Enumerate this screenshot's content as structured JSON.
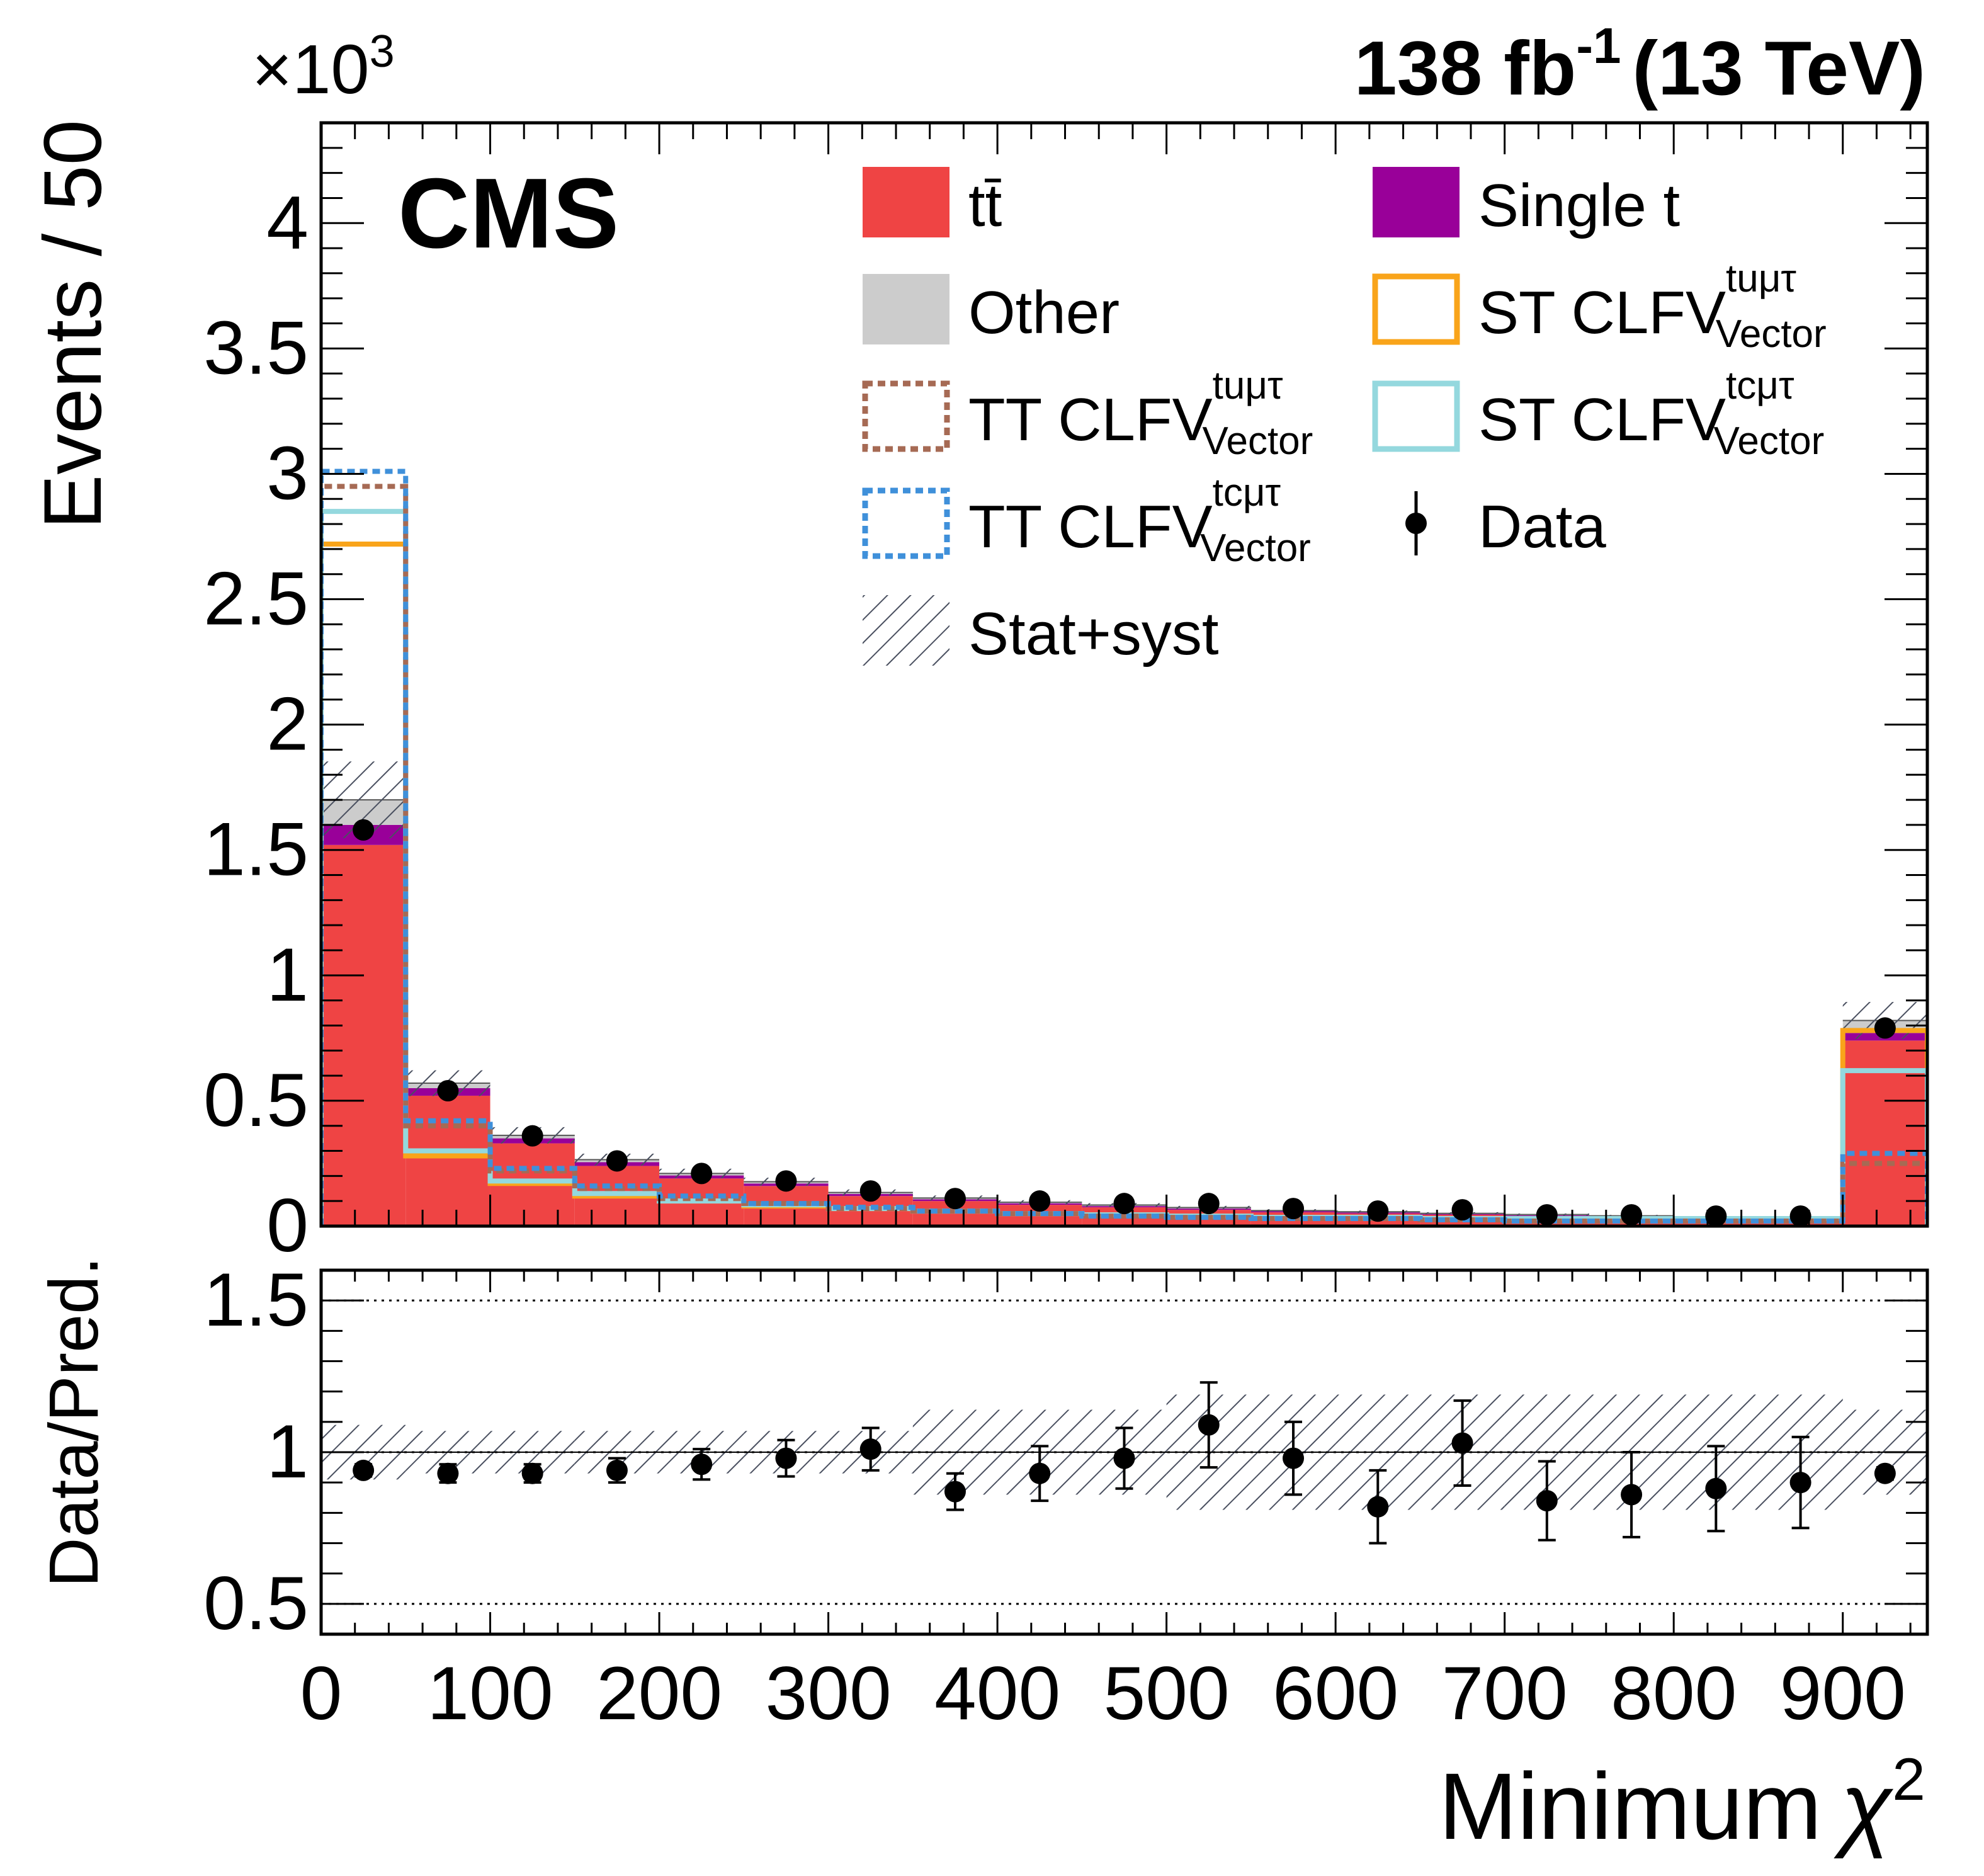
{
  "header": {
    "experiment": "CMS",
    "lumi_prefix": "138 fb",
    "lumi_exp": "-1",
    "lumi_suffix": "(13 TeV)",
    "multiplier_base": "×10",
    "multiplier_exp": "3"
  },
  "colors": {
    "ttbar": "#ef4444",
    "single_t": "#990099",
    "other": "#cccccc",
    "st_tumt": "#f9a41a",
    "st_tcmt": "#94d8de",
    "tt_tumt": "#a66a54",
    "tt_tcmt": "#3f90da",
    "hatch": "#4a5060",
    "data": "#000000"
  },
  "chart_data": {
    "type": "histogram",
    "x_label": "Minimum",
    "x_label_symbol": "χ",
    "x_label_exp": "2",
    "upper": {
      "ylabel": "Events / 50",
      "ylim": [
        0,
        4.4
      ],
      "ytick_labels": [
        "0",
        "0.5",
        "1",
        "1.5",
        "2",
        "2.5",
        "3",
        "3.5",
        "4"
      ],
      "y_scale_note": "×10^3",
      "bin_edges": [
        0,
        50,
        100,
        150,
        200,
        250,
        300,
        350,
        400,
        450,
        500,
        550,
        600,
        650,
        700,
        750,
        800,
        850,
        900,
        950
      ],
      "stack": [
        {
          "name": "tt̄",
          "color": "#ef4444",
          "values": [
            1.52,
            0.52,
            0.33,
            0.24,
            0.19,
            0.16,
            0.12,
            0.1,
            0.085,
            0.075,
            0.065,
            0.055,
            0.05,
            0.045,
            0.04,
            0.035,
            0.03,
            0.03,
            0.74
          ]
        },
        {
          "name": "Single t",
          "color": "#990099",
          "values": [
            0.08,
            0.03,
            0.02,
            0.015,
            0.012,
            0.01,
            0.008,
            0.007,
            0.006,
            0.005,
            0.005,
            0.004,
            0.004,
            0.003,
            0.003,
            0.003,
            0.003,
            0.003,
            0.03
          ]
        },
        {
          "name": "Other",
          "color": "#cccccc",
          "values": [
            0.1,
            0.02,
            0.012,
            0.01,
            0.008,
            0.007,
            0.006,
            0.005,
            0.004,
            0.004,
            0.004,
            0.003,
            0.003,
            0.003,
            0.003,
            0.003,
            0.003,
            0.003,
            0.05
          ]
        }
      ],
      "uncertainty_band": {
        "name": "Stat+syst",
        "rel_down": 0.09,
        "rel_up": 0.09
      },
      "signals": [
        {
          "name": "ST CLFV",
          "sup": "tuμτ",
          "sub": "Vector",
          "color": "#f9a41a",
          "style": "solid",
          "values": [
            2.72,
            0.28,
            0.17,
            0.12,
            0.1,
            0.08,
            0.07,
            0.06,
            0.05,
            0.045,
            0.04,
            0.035,
            0.03,
            0.03,
            0.03,
            0.03,
            0.03,
            0.03,
            0.78
          ]
        },
        {
          "name": "ST CLFV",
          "sup": "tcμτ",
          "sub": "Vector",
          "color": "#94d8de",
          "style": "solid",
          "values": [
            2.85,
            0.3,
            0.18,
            0.13,
            0.1,
            0.085,
            0.07,
            0.06,
            0.05,
            0.045,
            0.04,
            0.035,
            0.035,
            0.03,
            0.03,
            0.03,
            0.03,
            0.03,
            0.62
          ]
        },
        {
          "name": "TT CLFV",
          "sup": "tuμτ",
          "sub": "Vector",
          "color": "#a66a54",
          "style": "dotted",
          "values": [
            2.95,
            0.4,
            0.22,
            0.15,
            0.11,
            0.09,
            0.07,
            0.06,
            0.05,
            0.04,
            0.035,
            0.03,
            0.03,
            0.025,
            0.02,
            0.02,
            0.02,
            0.02,
            0.25
          ]
        },
        {
          "name": "TT CLFV",
          "sup": "tcμτ",
          "sub": "Vector",
          "color": "#3f90da",
          "style": "dotted",
          "values": [
            3.01,
            0.42,
            0.23,
            0.16,
            0.12,
            0.09,
            0.075,
            0.06,
            0.05,
            0.04,
            0.035,
            0.03,
            0.03,
            0.025,
            0.02,
            0.02,
            0.02,
            0.02,
            0.29
          ]
        }
      ],
      "data": {
        "name": "Data",
        "x": [
          25,
          75,
          125,
          175,
          225,
          275,
          325,
          375,
          425,
          475,
          525,
          575,
          625,
          675,
          725,
          775,
          825,
          875,
          925
        ],
        "y": [
          1.58,
          0.54,
          0.36,
          0.26,
          0.21,
          0.18,
          0.14,
          0.11,
          0.1,
          0.09,
          0.09,
          0.07,
          0.06,
          0.065,
          0.045,
          0.045,
          0.04,
          0.04,
          0.79
        ]
      }
    },
    "ratio": {
      "ylabel": "Data/Pred.",
      "ylim": [
        0.4,
        1.6
      ],
      "ytick_labels": [
        "0.5",
        "1",
        "1.5"
      ],
      "band": {
        "x": [
          25,
          75,
          125,
          175,
          225,
          275,
          325,
          375,
          425,
          475,
          525,
          575,
          625,
          675,
          725,
          775,
          825,
          875,
          925
        ],
        "half_width": [
          0.09,
          0.07,
          0.07,
          0.07,
          0.07,
          0.07,
          0.07,
          0.14,
          0.14,
          0.14,
          0.19,
          0.19,
          0.19,
          0.19,
          0.19,
          0.19,
          0.19,
          0.19,
          0.14
        ]
      },
      "data": {
        "x": [
          25,
          75,
          125,
          175,
          225,
          275,
          325,
          375,
          425,
          475,
          525,
          575,
          625,
          675,
          725,
          775,
          825,
          875,
          925
        ],
        "y": [
          0.94,
          0.93,
          0.93,
          0.94,
          0.96,
          0.98,
          1.01,
          0.87,
          0.93,
          0.98,
          1.09,
          0.98,
          0.82,
          1.03,
          0.84,
          0.86,
          0.88,
          0.9,
          0.93
        ],
        "err": [
          0.02,
          0.03,
          0.03,
          0.04,
          0.05,
          0.06,
          0.07,
          0.06,
          0.09,
          0.1,
          0.14,
          0.12,
          0.12,
          0.14,
          0.13,
          0.14,
          0.14,
          0.15,
          0.02
        ]
      }
    },
    "x_range": [
      0,
      950
    ],
    "xtick_labels": [
      "0",
      "100",
      "200",
      "300",
      "400",
      "500",
      "600",
      "700",
      "800",
      "900"
    ]
  },
  "legend": [
    {
      "key": "ttbar",
      "label": "tt̄",
      "type": "fill"
    },
    {
      "key": "single_t",
      "label": "Single t",
      "type": "fill"
    },
    {
      "key": "other",
      "label": "Other",
      "type": "fill"
    },
    {
      "key": "st_tumt",
      "label": "ST CLFV",
      "sup": "tuμτ",
      "sub": "Vector",
      "type": "line"
    },
    {
      "key": "tt_tumt",
      "label": "TT CLFV",
      "sup": "tuμτ",
      "sub": "Vector",
      "type": "dotted"
    },
    {
      "key": "st_tcmt",
      "label": "ST CLFV",
      "sup": "tcμτ",
      "sub": "Vector",
      "type": "line"
    },
    {
      "key": "tt_tcmt",
      "label": "TT CLFV",
      "sup": "tcμτ",
      "sub": "Vector",
      "type": "dotted"
    },
    {
      "key": "data",
      "label": "Data",
      "type": "marker"
    },
    {
      "key": "hatch",
      "label": "Stat+syst",
      "type": "hatch"
    }
  ]
}
